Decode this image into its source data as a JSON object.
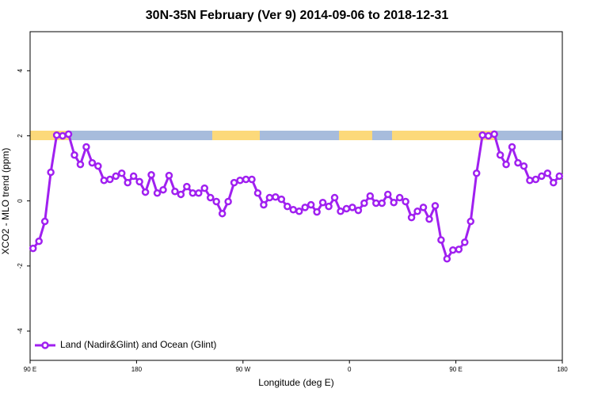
{
  "chart_data": {
    "type": "line",
    "title": "30N-35N February (Ver 9)   2014-09-06 to 2018-12-31",
    "xlabel": "Longitude (deg E)",
    "ylabel": "XCO2 - MLO trend (ppm)",
    "x": [
      92.5,
      97.5,
      102.5,
      107.5,
      112.5,
      117.5,
      122.5,
      127.5,
      132.5,
      137.5,
      142.5,
      147.5,
      152.5,
      157.5,
      162.5,
      167.5,
      172.5,
      177.5,
      182.5,
      187.5,
      192.5,
      197.5,
      202.5,
      207.5,
      212.5,
      217.5,
      222.5,
      227.5,
      232.5,
      237.5,
      242.5,
      247.5,
      252.5,
      257.5,
      262.5,
      267.5,
      272.5,
      277.5,
      282.5,
      287.5,
      292.5,
      297.5,
      302.5,
      307.5,
      312.5,
      317.5,
      322.5,
      327.5,
      332.5,
      337.5,
      342.5,
      347.5,
      352.5,
      357.5,
      362.5,
      367.5,
      372.5,
      377.5,
      382.5,
      387.5,
      392.5,
      397.5,
      402.5,
      407.5,
      412.5,
      417.5,
      422.5,
      427.5,
      432.5,
      437.5,
      442.5,
      447.5,
      452.5,
      457.5,
      462.5,
      467.5,
      472.5,
      477.5,
      482.5,
      487.5,
      492.5,
      497.5,
      502.5,
      507.5,
      512.5,
      517.5,
      522.5,
      527.5,
      532.5,
      537.5
    ],
    "series": [
      {
        "name": "Land (Nadir&Glint) and Ocean (Glint)",
        "color": "#a020f0",
        "values": [
          -1.46,
          -1.24,
          -0.63,
          0.88,
          2.02,
          2.0,
          2.05,
          1.41,
          1.12,
          1.66,
          1.17,
          1.07,
          0.63,
          0.66,
          0.76,
          0.85,
          0.56,
          0.76,
          0.59,
          0.27,
          0.8,
          0.24,
          0.34,
          0.78,
          0.29,
          0.2,
          0.44,
          0.24,
          0.24,
          0.39,
          0.1,
          -0.02,
          -0.39,
          -0.02,
          0.56,
          0.63,
          0.66,
          0.66,
          0.24,
          -0.12,
          0.1,
          0.12,
          0.05,
          -0.17,
          -0.27,
          -0.32,
          -0.2,
          -0.12,
          -0.34,
          -0.05,
          -0.17,
          0.1,
          -0.32,
          -0.24,
          -0.2,
          -0.29,
          -0.07,
          0.15,
          -0.07,
          -0.07,
          0.2,
          -0.05,
          0.1,
          -0.02,
          -0.51,
          -0.32,
          -0.2,
          -0.56,
          -0.15,
          -1.2,
          -1.78,
          -1.51,
          -1.49,
          -1.27,
          -0.63,
          0.85,
          2.02,
          2.0,
          2.05,
          1.41,
          1.12,
          1.66,
          1.17,
          1.07,
          0.63,
          0.66,
          0.76,
          0.85,
          0.56,
          0.76
        ]
      }
    ],
    "xlim": [
      90,
      540
    ],
    "xticks": [
      {
        "value": 90,
        "label": "90 E"
      },
      180,
      {
        "value": 270,
        "label": "90 W"
      },
      {
        "value": 360,
        "label": "0"
      },
      {
        "value": 450,
        "label": "90 E"
      },
      {
        "value": 540,
        "label": "180"
      }
    ],
    "ylim": [
      -4.9,
      5.2
    ],
    "yticks": [
      -4,
      -2,
      0,
      2,
      4
    ],
    "legend": "bottom-left"
  }
}
